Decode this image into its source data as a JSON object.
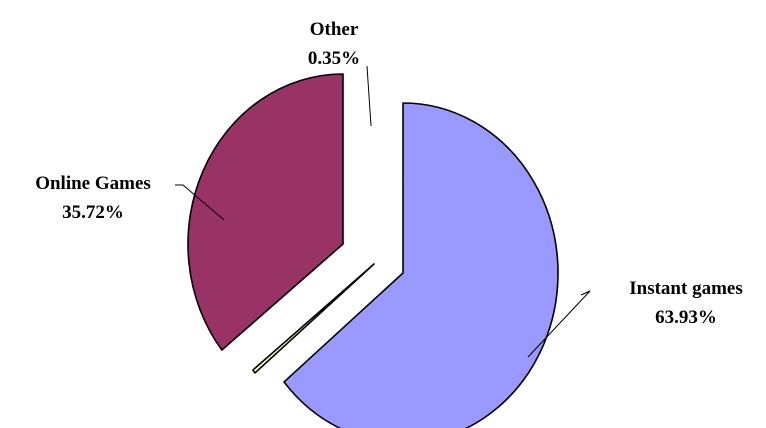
{
  "chart_data": {
    "type": "pie",
    "title": "",
    "legend": "none",
    "slices": [
      {
        "label": "Instant games",
        "value_label": "63.93%",
        "value": 63.93,
        "color": "#9999FF"
      },
      {
        "label": "Other",
        "value_label": "0.35%",
        "value": 0.35,
        "color": "#FFFFCC"
      },
      {
        "label": "Online Games",
        "value_label": "35.72%",
        "value": 35.72,
        "color": "#993366"
      }
    ]
  }
}
